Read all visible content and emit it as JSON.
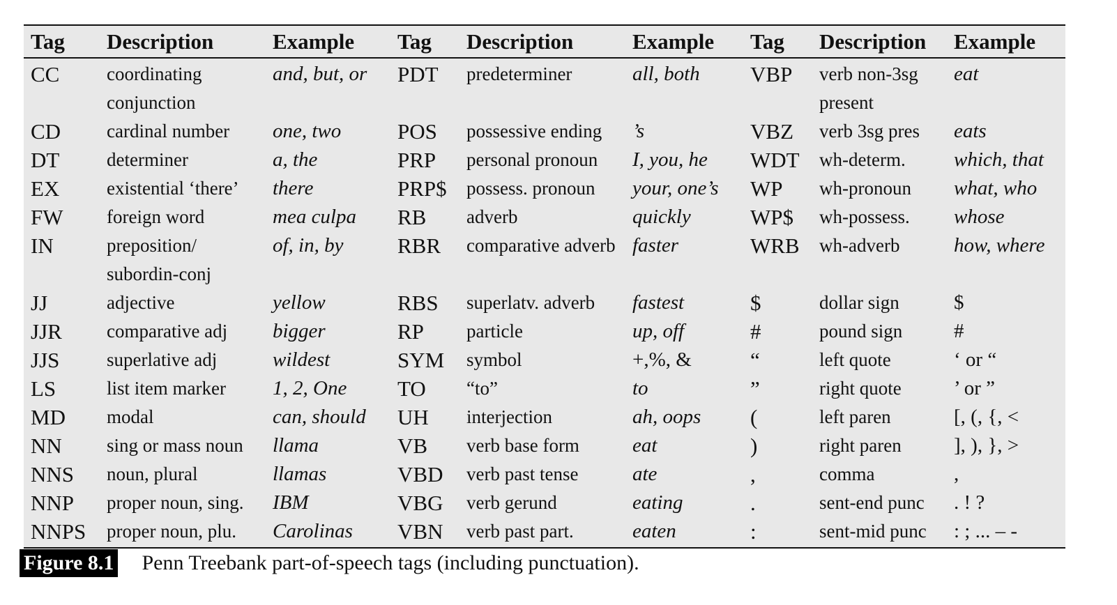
{
  "table": {
    "headers": [
      "Tag",
      "Description",
      "Example",
      "Tag",
      "Description",
      "Example",
      "Tag",
      "Description",
      "Example"
    ],
    "rows": [
      [
        "CC",
        "coordinating conjunction",
        "and, but, or",
        "PDT",
        "predeterminer",
        "all, both",
        "VBP",
        "verb non-3sg present",
        "eat"
      ],
      [
        "CD",
        "cardinal number",
        "one, two",
        "POS",
        "possessive ending",
        "’s",
        "VBZ",
        "verb 3sg pres",
        "eats"
      ],
      [
        "DT",
        "determiner",
        "a, the",
        "PRP",
        "personal pronoun",
        "I, you, he",
        "WDT",
        "wh-determ.",
        "which, that"
      ],
      [
        "EX",
        "existential ‘there’",
        "there",
        "PRP$",
        "possess. pronoun",
        "your, one’s",
        "WP",
        "wh-pronoun",
        "what, who"
      ],
      [
        "FW",
        "foreign word",
        "mea culpa",
        "RB",
        "adverb",
        "quickly",
        "WP$",
        "wh-possess.",
        "whose"
      ],
      [
        "IN",
        "preposition/ subordin-conj",
        "of, in, by",
        "RBR",
        "comparative adverb",
        "faster",
        "WRB",
        "wh-adverb",
        "how, where"
      ],
      [
        "JJ",
        "adjective",
        "yellow",
        "RBS",
        "superlatv. adverb",
        "fastest",
        "$",
        "dollar sign",
        "$"
      ],
      [
        "JJR",
        "comparative adj",
        "bigger",
        "RP",
        "particle",
        "up, off",
        "#",
        "pound sign",
        "#"
      ],
      [
        "JJS",
        "superlative adj",
        "wildest",
        "SYM",
        "symbol",
        "+,%, &",
        "“",
        "left quote",
        "‘ or “"
      ],
      [
        "LS",
        "list item marker",
        "1, 2, One",
        "TO",
        "“to”",
        "to",
        "”",
        "right quote",
        "’ or ”"
      ],
      [
        "MD",
        "modal",
        "can, should",
        "UH",
        "interjection",
        "ah, oops",
        "(",
        "left paren",
        "[, (, {, <"
      ],
      [
        "NN",
        "sing or mass noun",
        "llama",
        "VB",
        "verb base form",
        "eat",
        ")",
        "right paren",
        "], ), }, >"
      ],
      [
        "NNS",
        "noun, plural",
        "llamas",
        "VBD",
        "verb past tense",
        "ate",
        ",",
        "comma",
        ","
      ],
      [
        "NNP",
        "proper noun, sing.",
        "IBM",
        "VBG",
        "verb gerund",
        "eating",
        ".",
        "sent-end punc",
        ". ! ?"
      ],
      [
        "NNPS",
        "proper noun, plu.",
        "Carolinas",
        "VBN",
        "verb past part.",
        "eaten",
        ":",
        "sent-mid punc",
        ": ; ... – -"
      ]
    ]
  },
  "caption": {
    "label": "Figure 8.1",
    "text": "Penn Treebank part-of-speech tags (including punctuation)."
  }
}
